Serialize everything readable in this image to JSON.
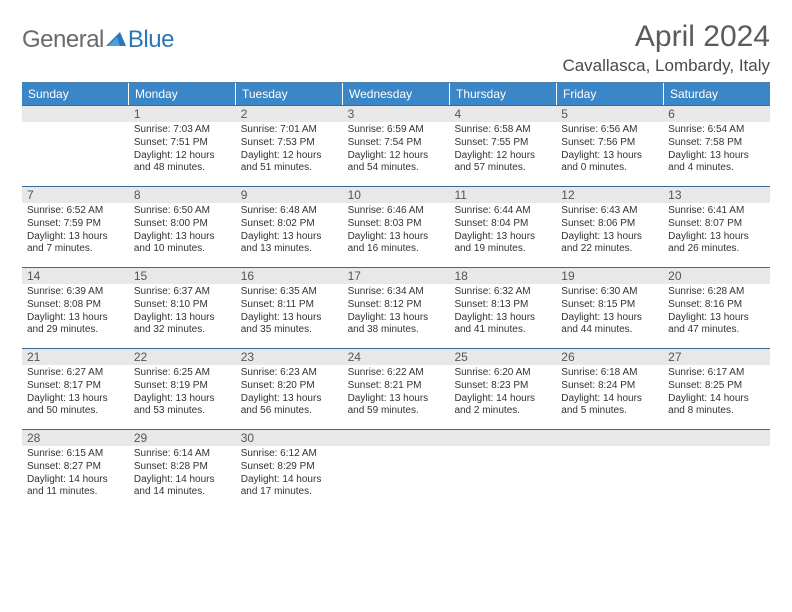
{
  "logo": {
    "general": "General",
    "blue": "Blue"
  },
  "title": "April 2024",
  "location": "Cavallasca, Lombardy, Italy",
  "colors": {
    "header_bg": "#3b86c6",
    "header_text": "#ffffff",
    "day_num_bg": "#e8e8e8",
    "day_num_text": "#555555",
    "border": "#3a6a98",
    "body_text": "#333333",
    "title_text": "#5b5b5b",
    "location_text": "#4a4a4a",
    "logo_gray": "#6a6a6a",
    "logo_blue": "#2d77b6"
  },
  "typography": {
    "title_fontsize": 30,
    "location_fontsize": 17,
    "weekday_fontsize": 12,
    "daynum_fontsize": 12,
    "body_fontsize": 10
  },
  "weekdays": [
    "Sunday",
    "Monday",
    "Tuesday",
    "Wednesday",
    "Thursday",
    "Friday",
    "Saturday"
  ],
  "weeks": [
    [
      {
        "n": "",
        "sunrise": "",
        "sunset": "",
        "daylight": ""
      },
      {
        "n": "1",
        "sunrise": "Sunrise: 7:03 AM",
        "sunset": "Sunset: 7:51 PM",
        "daylight": "Daylight: 12 hours and 48 minutes."
      },
      {
        "n": "2",
        "sunrise": "Sunrise: 7:01 AM",
        "sunset": "Sunset: 7:53 PM",
        "daylight": "Daylight: 12 hours and 51 minutes."
      },
      {
        "n": "3",
        "sunrise": "Sunrise: 6:59 AM",
        "sunset": "Sunset: 7:54 PM",
        "daylight": "Daylight: 12 hours and 54 minutes."
      },
      {
        "n": "4",
        "sunrise": "Sunrise: 6:58 AM",
        "sunset": "Sunset: 7:55 PM",
        "daylight": "Daylight: 12 hours and 57 minutes."
      },
      {
        "n": "5",
        "sunrise": "Sunrise: 6:56 AM",
        "sunset": "Sunset: 7:56 PM",
        "daylight": "Daylight: 13 hours and 0 minutes."
      },
      {
        "n": "6",
        "sunrise": "Sunrise: 6:54 AM",
        "sunset": "Sunset: 7:58 PM",
        "daylight": "Daylight: 13 hours and 4 minutes."
      }
    ],
    [
      {
        "n": "7",
        "sunrise": "Sunrise: 6:52 AM",
        "sunset": "Sunset: 7:59 PM",
        "daylight": "Daylight: 13 hours and 7 minutes."
      },
      {
        "n": "8",
        "sunrise": "Sunrise: 6:50 AM",
        "sunset": "Sunset: 8:00 PM",
        "daylight": "Daylight: 13 hours and 10 minutes."
      },
      {
        "n": "9",
        "sunrise": "Sunrise: 6:48 AM",
        "sunset": "Sunset: 8:02 PM",
        "daylight": "Daylight: 13 hours and 13 minutes."
      },
      {
        "n": "10",
        "sunrise": "Sunrise: 6:46 AM",
        "sunset": "Sunset: 8:03 PM",
        "daylight": "Daylight: 13 hours and 16 minutes."
      },
      {
        "n": "11",
        "sunrise": "Sunrise: 6:44 AM",
        "sunset": "Sunset: 8:04 PM",
        "daylight": "Daylight: 13 hours and 19 minutes."
      },
      {
        "n": "12",
        "sunrise": "Sunrise: 6:43 AM",
        "sunset": "Sunset: 8:06 PM",
        "daylight": "Daylight: 13 hours and 22 minutes."
      },
      {
        "n": "13",
        "sunrise": "Sunrise: 6:41 AM",
        "sunset": "Sunset: 8:07 PM",
        "daylight": "Daylight: 13 hours and 26 minutes."
      }
    ],
    [
      {
        "n": "14",
        "sunrise": "Sunrise: 6:39 AM",
        "sunset": "Sunset: 8:08 PM",
        "daylight": "Daylight: 13 hours and 29 minutes."
      },
      {
        "n": "15",
        "sunrise": "Sunrise: 6:37 AM",
        "sunset": "Sunset: 8:10 PM",
        "daylight": "Daylight: 13 hours and 32 minutes."
      },
      {
        "n": "16",
        "sunrise": "Sunrise: 6:35 AM",
        "sunset": "Sunset: 8:11 PM",
        "daylight": "Daylight: 13 hours and 35 minutes."
      },
      {
        "n": "17",
        "sunrise": "Sunrise: 6:34 AM",
        "sunset": "Sunset: 8:12 PM",
        "daylight": "Daylight: 13 hours and 38 minutes."
      },
      {
        "n": "18",
        "sunrise": "Sunrise: 6:32 AM",
        "sunset": "Sunset: 8:13 PM",
        "daylight": "Daylight: 13 hours and 41 minutes."
      },
      {
        "n": "19",
        "sunrise": "Sunrise: 6:30 AM",
        "sunset": "Sunset: 8:15 PM",
        "daylight": "Daylight: 13 hours and 44 minutes."
      },
      {
        "n": "20",
        "sunrise": "Sunrise: 6:28 AM",
        "sunset": "Sunset: 8:16 PM",
        "daylight": "Daylight: 13 hours and 47 minutes."
      }
    ],
    [
      {
        "n": "21",
        "sunrise": "Sunrise: 6:27 AM",
        "sunset": "Sunset: 8:17 PM",
        "daylight": "Daylight: 13 hours and 50 minutes."
      },
      {
        "n": "22",
        "sunrise": "Sunrise: 6:25 AM",
        "sunset": "Sunset: 8:19 PM",
        "daylight": "Daylight: 13 hours and 53 minutes."
      },
      {
        "n": "23",
        "sunrise": "Sunrise: 6:23 AM",
        "sunset": "Sunset: 8:20 PM",
        "daylight": "Daylight: 13 hours and 56 minutes."
      },
      {
        "n": "24",
        "sunrise": "Sunrise: 6:22 AM",
        "sunset": "Sunset: 8:21 PM",
        "daylight": "Daylight: 13 hours and 59 minutes."
      },
      {
        "n": "25",
        "sunrise": "Sunrise: 6:20 AM",
        "sunset": "Sunset: 8:23 PM",
        "daylight": "Daylight: 14 hours and 2 minutes."
      },
      {
        "n": "26",
        "sunrise": "Sunrise: 6:18 AM",
        "sunset": "Sunset: 8:24 PM",
        "daylight": "Daylight: 14 hours and 5 minutes."
      },
      {
        "n": "27",
        "sunrise": "Sunrise: 6:17 AM",
        "sunset": "Sunset: 8:25 PM",
        "daylight": "Daylight: 14 hours and 8 minutes."
      }
    ],
    [
      {
        "n": "28",
        "sunrise": "Sunrise: 6:15 AM",
        "sunset": "Sunset: 8:27 PM",
        "daylight": "Daylight: 14 hours and 11 minutes."
      },
      {
        "n": "29",
        "sunrise": "Sunrise: 6:14 AM",
        "sunset": "Sunset: 8:28 PM",
        "daylight": "Daylight: 14 hours and 14 minutes."
      },
      {
        "n": "30",
        "sunrise": "Sunrise: 6:12 AM",
        "sunset": "Sunset: 8:29 PM",
        "daylight": "Daylight: 14 hours and 17 minutes."
      },
      {
        "n": "",
        "sunrise": "",
        "sunset": "",
        "daylight": ""
      },
      {
        "n": "",
        "sunrise": "",
        "sunset": "",
        "daylight": ""
      },
      {
        "n": "",
        "sunrise": "",
        "sunset": "",
        "daylight": ""
      },
      {
        "n": "",
        "sunrise": "",
        "sunset": "",
        "daylight": ""
      }
    ]
  ]
}
